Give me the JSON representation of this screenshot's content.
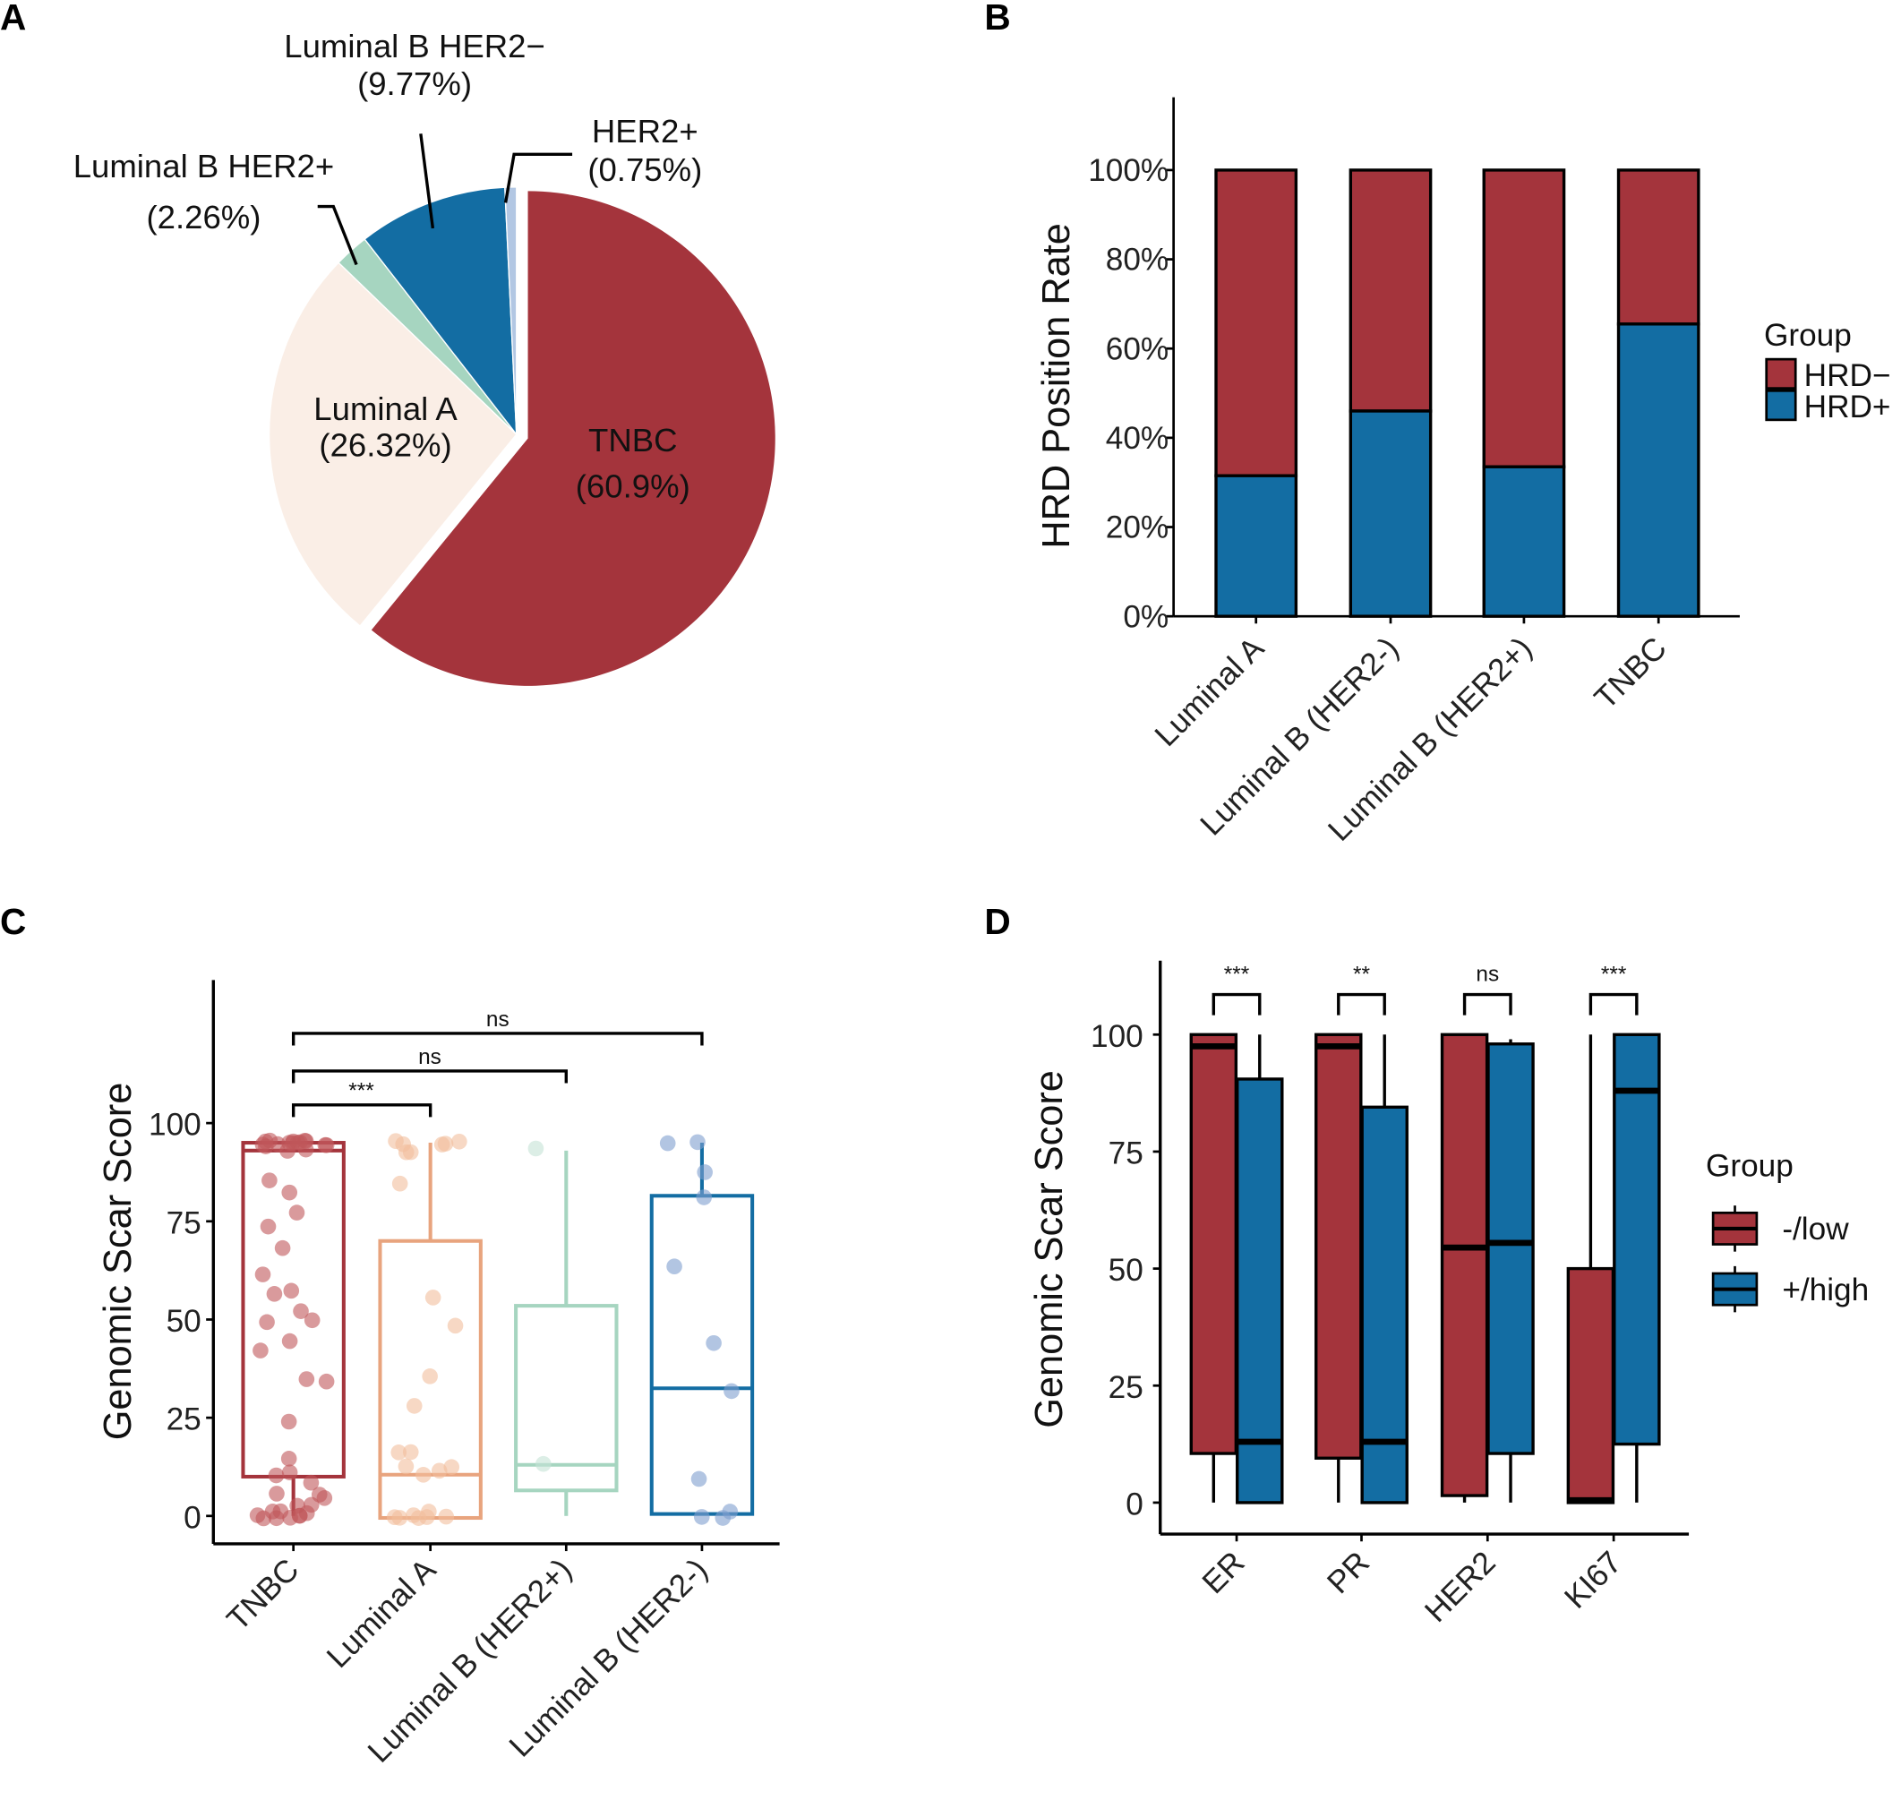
{
  "panels": {
    "a": "A",
    "b": "B",
    "c": "C",
    "d": "D"
  },
  "chart_data": [
    {
      "type": "pie",
      "panel": "A",
      "slices": [
        {
          "name": "TNBC",
          "value": 60.9,
          "label": "TNBC",
          "pct_label": "(60.9%)",
          "color": "#A4343C"
        },
        {
          "name": "Luminal A",
          "value": 26.32,
          "label": "Luminal A",
          "pct_label": "(26.32%)",
          "color": "#FAEEE6"
        },
        {
          "name": "Luminal B HER2+",
          "value": 2.26,
          "label": "Luminal B HER2+",
          "pct_label": "(2.26%)",
          "color": "#A6D5C0"
        },
        {
          "name": "Luminal B HER2−",
          "value": 9.77,
          "label": "Luminal B HER2−",
          "pct_label": "(9.77%)",
          "color": "#136DA3"
        },
        {
          "name": "HER2+",
          "value": 0.75,
          "label": "HER2+",
          "pct_label": "(0.75%)",
          "color": "#B2C7E3"
        }
      ]
    },
    {
      "type": "bar",
      "stacked": true,
      "panel": "B",
      "categories": [
        "Luminal A",
        "Luminal B (HER2-)",
        "Luminal B (HER2+)",
        "TNBC"
      ],
      "series": [
        {
          "name": "HRD+",
          "values": [
            31.5,
            46,
            33.5,
            65.5
          ],
          "color": "#136DA3"
        },
        {
          "name": "HRD−",
          "values": [
            68.5,
            54,
            66.5,
            34.5
          ],
          "color": "#A4343C"
        }
      ],
      "ylabel": "HRD Position Rate",
      "yticks": [
        "0%",
        "20%",
        "40%",
        "60%",
        "80%",
        "100%"
      ],
      "ylim": [
        0,
        100
      ],
      "legend_title": "Group",
      "legend_position": "right"
    },
    {
      "type": "box",
      "panel": "C",
      "categories": [
        "TNBC",
        "Luminal A",
        "Luminal B (HER2+)",
        "Luminal B (HER2-)"
      ],
      "colors": [
        "#A4343C",
        "#E8A47E",
        "#A6D5C0",
        "#136DA3"
      ],
      "point_colors": [
        "#C0565A",
        "#F2BE9C",
        "#C4E3D5",
        "#7F9FCF"
      ],
      "boxes": [
        {
          "low": 0,
          "q1": 10,
          "median": 93,
          "q3": 95,
          "high": 95
        },
        {
          "low": -0.5,
          "q1": -0.5,
          "median": 10.5,
          "q3": 70,
          "high": 95
        },
        {
          "low": 0,
          "q1": 6.5,
          "median": 13,
          "q3": 53.5,
          "high": 93
        },
        {
          "low": 0.5,
          "q1": 0.5,
          "median": 32.5,
          "q3": 81.5,
          "high": 95
        }
      ],
      "points": [
        [
          95,
          95,
          95,
          95,
          95,
          95,
          95,
          95,
          95,
          95,
          95,
          95,
          94,
          94,
          93,
          93,
          86,
          82,
          77,
          74,
          68,
          62,
          57,
          57,
          52,
          50,
          49,
          44,
          42,
          35,
          34,
          24,
          15,
          11,
          10,
          8,
          6,
          6,
          5,
          3,
          2,
          1,
          1,
          1,
          0,
          0,
          0,
          0,
          0,
          0
        ],
        [
          95,
          95,
          95,
          95,
          95,
          93,
          92,
          84,
          56,
          48,
          35,
          28,
          16,
          16,
          12,
          12,
          11,
          10,
          1,
          0,
          0,
          0,
          0,
          0,
          0
        ],
        [
          93,
          13
        ],
        [
          95,
          95,
          88,
          81,
          64,
          44,
          32,
          10,
          1,
          0,
          0
        ]
      ],
      "ylabel": "Genomic Scar Score",
      "yticks": [
        "0",
        "25",
        "50",
        "75",
        "100"
      ],
      "ylim": [
        0,
        100
      ],
      "comparisons": [
        {
          "from": "TNBC",
          "to": "Luminal A",
          "label": "***"
        },
        {
          "from": "TNBC",
          "to": "Luminal B (HER2+)",
          "label": "ns"
        },
        {
          "from": "TNBC",
          "to": "Luminal B (HER2-)",
          "label": "ns"
        }
      ]
    },
    {
      "type": "box",
      "panel": "D",
      "categories": [
        "ER",
        "PR",
        "HER2",
        "KI67"
      ],
      "series": [
        {
          "name": "-/low",
          "color": "#A4343C",
          "boxes": [
            {
              "low": 0,
              "q1": 10.5,
              "median": 97.5,
              "q3": 100,
              "high": 100
            },
            {
              "low": 0,
              "q1": 9.5,
              "median": 97.5,
              "q3": 100,
              "high": 100
            },
            {
              "low": 0,
              "q1": 1.5,
              "median": 54.5,
              "q3": 100,
              "high": 100
            },
            {
              "low": 0,
              "q1": 0,
              "median": 0.5,
              "q3": 50,
              "high": 100
            }
          ]
        },
        {
          "name": "+/high",
          "color": "#136DA3",
          "boxes": [
            {
              "low": 0,
              "q1": 0,
              "median": 13,
              "q3": 90.5,
              "high": 100
            },
            {
              "low": 0,
              "q1": 0,
              "median": 13,
              "q3": 84.5,
              "high": 100
            },
            {
              "low": 0,
              "q1": 10.5,
              "median": 55.5,
              "q3": 98,
              "high": 99
            },
            {
              "low": 0,
              "q1": 12.5,
              "median": 88,
              "q3": 100,
              "high": 100
            }
          ]
        }
      ],
      "significance": [
        "***",
        "**",
        "ns",
        "***"
      ],
      "ylabel": "Genomic Scar Score",
      "yticks": [
        "0",
        "25",
        "50",
        "75",
        "100"
      ],
      "ylim": [
        0,
        100
      ],
      "legend_title": "Group",
      "legend_position": "right"
    }
  ]
}
